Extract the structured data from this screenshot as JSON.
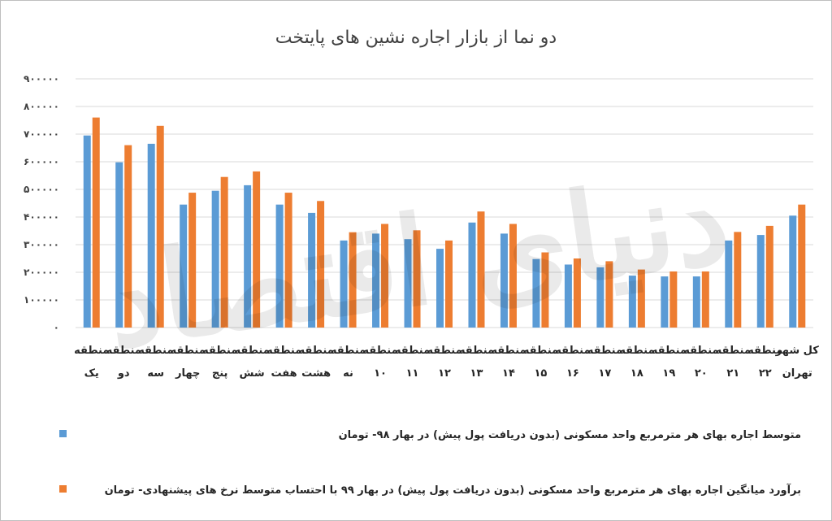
{
  "chart_data": {
    "type": "bar",
    "title": "دو نما از بازار اجاره نشین های پایتخت",
    "ylim": [
      0,
      900000
    ],
    "yticks": [
      0,
      100000,
      200000,
      300000,
      400000,
      500000,
      600000,
      700000,
      800000,
      900000
    ],
    "ytick_labels": [
      "۰",
      "۱۰۰۰۰۰",
      "۲۰۰۰۰۰",
      "۳۰۰۰۰۰",
      "۴۰۰۰۰۰",
      "۵۰۰۰۰۰",
      "۶۰۰۰۰۰",
      "۷۰۰۰۰۰",
      "۸۰۰۰۰۰",
      "۹۰۰۰۰۰"
    ],
    "grid": true,
    "categories": [
      [
        "منطقه",
        "یک"
      ],
      [
        "منطقه",
        "دو"
      ],
      [
        "منطقه",
        "سه"
      ],
      [
        "منطقه",
        "چهار"
      ],
      [
        "منطقه",
        "پنج"
      ],
      [
        "منطقه",
        "شش"
      ],
      [
        "منطقه",
        "هفت"
      ],
      [
        "منطقه",
        "هشت"
      ],
      [
        "منطقه",
        "نه"
      ],
      [
        "منطقه",
        "۱۰"
      ],
      [
        "منطقه",
        "۱۱"
      ],
      [
        "منطقه",
        "۱۲"
      ],
      [
        "منطقه",
        "۱۳"
      ],
      [
        "منطقه",
        "۱۴"
      ],
      [
        "منطقه",
        "۱۵"
      ],
      [
        "منطقه",
        "۱۶"
      ],
      [
        "منطقه",
        "۱۷"
      ],
      [
        "منطقه",
        "۱۸"
      ],
      [
        "منطقه",
        "۱۹"
      ],
      [
        "منطقه",
        "۲۰"
      ],
      [
        "منطقه",
        "۲۱"
      ],
      [
        "منطقه",
        "۲۲"
      ],
      [
        "کل شهر",
        "تهران"
      ]
    ],
    "series": [
      {
        "name": "متوسط اجاره بهای هر مترمربع واحد مسکونی (بدون دریافت پول پیش) در بهار ۹۸- تومان",
        "color": "#5b9bd5",
        "values": [
          695000,
          598000,
          665000,
          445000,
          495000,
          515000,
          445000,
          415000,
          315000,
          340000,
          320000,
          285000,
          380000,
          340000,
          248000,
          228000,
          218000,
          188000,
          185000,
          185000,
          315000,
          335000,
          405000
        ]
      },
      {
        "name": "برآورد میانگین اجاره بهای هر مترمربع واحد مسکونی (بدون دریافت پول پیش) در بهار ۹۹ با احتساب متوسط نرخ های پیشنهادی- تومان",
        "color": "#ed7d31",
        "values": [
          760000,
          660000,
          730000,
          488000,
          545000,
          565000,
          488000,
          458000,
          345000,
          375000,
          352000,
          315000,
          420000,
          375000,
          272000,
          250000,
          240000,
          210000,
          203000,
          203000,
          346000,
          368000,
          445000
        ]
      }
    ],
    "legend_position": "bottom"
  },
  "watermark": "دنیای اقتصاد"
}
